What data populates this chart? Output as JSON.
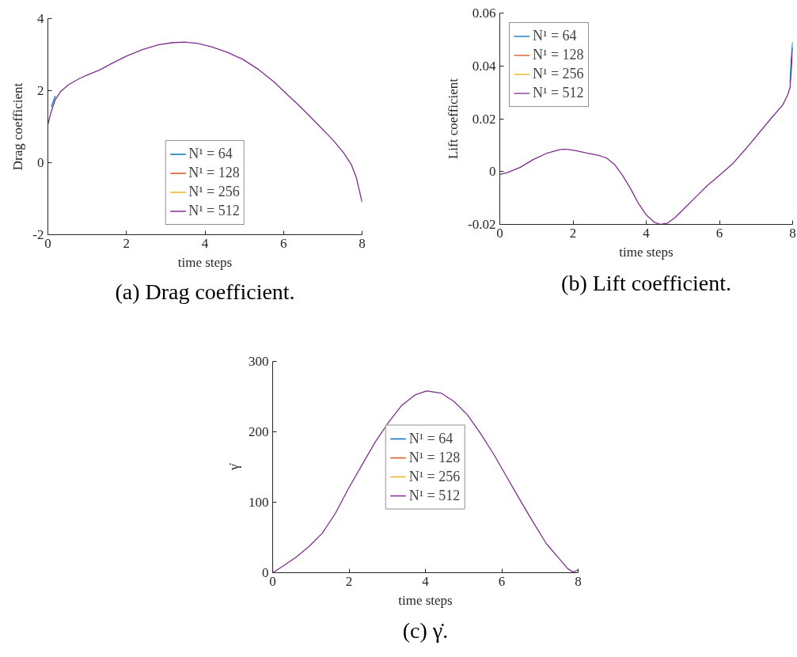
{
  "chart_data": [
    {
      "type": "line",
      "xlabel": "time steps",
      "ylabel": "Drag coefficient",
      "annotations": [
        "(a) Drag coefficient."
      ],
      "legend": "bottom",
      "xlim": [
        0,
        8
      ],
      "ylim": [
        -2,
        4
      ],
      "xticks": [
        0,
        2,
        4,
        6,
        8
      ],
      "yticks": [
        -2,
        0,
        2,
        4
      ],
      "x": [
        0,
        0.087,
        0.19,
        0.32,
        0.52,
        0.79,
        1.0,
        1.33,
        1.6,
        2.0,
        2.41,
        2.81,
        3.15,
        3.48,
        3.82,
        4.15,
        4.56,
        4.96,
        5.36,
        5.77,
        6.0,
        6.44,
        6.84,
        7.25,
        7.52,
        7.72,
        7.85,
        7.93,
        8.0
      ],
      "series": [
        {
          "name": "N¹ = 64",
          "color": "#0072bd",
          "values": [
            null,
            1.55,
            1.85,
            null,
            null,
            null,
            null,
            null,
            null,
            null,
            null,
            null,
            null,
            null,
            null,
            null,
            null,
            null,
            null,
            null,
            null,
            null,
            null,
            null,
            null,
            null,
            null,
            null,
            null
          ]
        },
        {
          "name": "N¹ = 128",
          "color": "#d95319",
          "values": [
            null,
            null,
            null,
            null,
            null,
            null,
            null,
            null,
            null,
            null,
            null,
            null,
            null,
            null,
            null,
            null,
            null,
            null,
            null,
            null,
            null,
            null,
            null,
            null,
            null,
            null,
            null,
            null,
            null
          ]
        },
        {
          "name": "N¹ = 256",
          "color": "#edb120",
          "values": [
            null,
            null,
            null,
            null,
            null,
            null,
            null,
            null,
            null,
            null,
            null,
            null,
            null,
            null,
            null,
            null,
            null,
            null,
            null,
            null,
            null,
            null,
            null,
            null,
            null,
            null,
            null,
            null,
            null
          ]
        },
        {
          "name": "N¹ = 512",
          "color": "#7e2f8e",
          "values": [
            1.06,
            1.43,
            1.75,
            1.97,
            2.16,
            2.33,
            2.43,
            2.58,
            2.74,
            2.96,
            3.14,
            3.27,
            3.33,
            3.35,
            3.31,
            3.22,
            3.07,
            2.87,
            2.59,
            2.23,
            1.99,
            1.54,
            1.1,
            0.64,
            0.29,
            -0.04,
            -0.4,
            -0.77,
            -1.1
          ]
        }
      ]
    },
    {
      "type": "line",
      "xlabel": "time steps",
      "ylabel": "Lift coefficient",
      "annotations": [
        "(b) Lift coefficient."
      ],
      "legend": "top left",
      "xlim": [
        0,
        8
      ],
      "ylim": [
        -0.02,
        0.06
      ],
      "xticks": [
        0,
        2,
        4,
        6,
        8
      ],
      "yticks": [
        -0.02,
        0,
        0.02,
        0.04,
        0.06
      ],
      "x": [
        0,
        0.2,
        0.56,
        0.92,
        1.28,
        1.63,
        1.78,
        2.06,
        2.35,
        2.71,
        2.92,
        3.14,
        3.35,
        3.57,
        3.78,
        4.0,
        4.22,
        4.39,
        4.57,
        4.79,
        5.08,
        5.37,
        5.66,
        6.0,
        6.37,
        6.72,
        7.08,
        7.44,
        7.73,
        7.87,
        7.93,
        7.96,
        8.0
      ],
      "series": [
        {
          "name": "N¹ = 64",
          "color": "#0072bd",
          "values": [
            null,
            null,
            null,
            null,
            null,
            null,
            null,
            null,
            null,
            null,
            null,
            null,
            null,
            null,
            null,
            null,
            null,
            null,
            null,
            null,
            null,
            null,
            null,
            null,
            null,
            null,
            null,
            null,
            null,
            null,
            0.0335,
            0.042,
            0.049
          ]
        },
        {
          "name": "N¹ = 128",
          "color": "#d95319",
          "values": [
            null,
            null,
            null,
            null,
            null,
            null,
            null,
            null,
            null,
            null,
            null,
            null,
            null,
            null,
            null,
            null,
            null,
            null,
            null,
            null,
            null,
            null,
            null,
            null,
            null,
            null,
            null,
            null,
            null,
            null,
            null,
            null,
            null
          ]
        },
        {
          "name": "N¹ = 256",
          "color": "#edb120",
          "values": [
            null,
            null,
            null,
            null,
            null,
            null,
            null,
            null,
            null,
            null,
            null,
            null,
            null,
            null,
            null,
            null,
            null,
            null,
            null,
            null,
            null,
            null,
            null,
            null,
            null,
            null,
            null,
            null,
            null,
            null,
            null,
            null,
            null
          ]
        },
        {
          "name": "N¹ = 512",
          "color": "#7e2f8e",
          "values": [
            -0.0011,
            -0.0004,
            0.0016,
            0.0046,
            0.0069,
            0.0083,
            0.0085,
            0.008,
            0.0071,
            0.0061,
            0.0051,
            0.0026,
            -0.0014,
            -0.0064,
            -0.0119,
            -0.0164,
            -0.0192,
            -0.02,
            -0.0196,
            -0.0174,
            -0.0134,
            -0.0094,
            -0.0054,
            -0.0014,
            0.0031,
            0.0086,
            0.0146,
            0.0206,
            0.0252,
            0.0292,
            0.032,
            0.038,
            0.047
          ]
        }
      ]
    },
    {
      "type": "line",
      "xlabel": "time steps",
      "ylabel": "γ̇",
      "annotations": [
        "(c) γ̇."
      ],
      "legend": "center",
      "xlim": [
        0,
        8
      ],
      "ylim": [
        0,
        300
      ],
      "xticks": [
        0,
        2,
        4,
        6,
        8
      ],
      "yticks": [
        0,
        100,
        200,
        300
      ],
      "x": [
        0,
        0.26,
        0.61,
        0.95,
        1.3,
        1.64,
        1.99,
        2.34,
        2.68,
        3.03,
        3.37,
        3.72,
        4.03,
        4.41,
        4.75,
        5.1,
        5.44,
        5.79,
        6.13,
        6.48,
        6.83,
        7.17,
        7.52,
        7.72,
        7.86,
        7.93,
        8.0
      ],
      "series": [
        {
          "name": "N¹ = 64",
          "color": "#0072bd",
          "values": [
            null,
            null,
            null,
            null,
            null,
            null,
            null,
            null,
            null,
            null,
            null,
            null,
            null,
            null,
            null,
            null,
            null,
            null,
            null,
            null,
            null,
            null,
            null,
            null,
            null,
            null,
            null
          ]
        },
        {
          "name": "N¹ = 128",
          "color": "#d95319",
          "values": [
            null,
            null,
            null,
            null,
            null,
            null,
            null,
            null,
            null,
            null,
            null,
            null,
            null,
            null,
            null,
            null,
            null,
            null,
            null,
            null,
            null,
            null,
            null,
            null,
            null,
            null,
            null
          ]
        },
        {
          "name": "N¹ = 256",
          "color": "#edb120",
          "values": [
            null,
            null,
            null,
            null,
            null,
            null,
            null,
            null,
            null,
            null,
            null,
            null,
            null,
            null,
            null,
            null,
            null,
            null,
            null,
            null,
            null,
            null,
            null,
            null,
            null,
            null,
            null
          ]
        },
        {
          "name": "N¹ = 512",
          "color": "#7e2f8e",
          "values": [
            0,
            9,
            22,
            37,
            56,
            84,
            120,
            153,
            185,
            213,
            237,
            252,
            258,
            255,
            243,
            224,
            198,
            168,
            136,
            103,
            71,
            41,
            19,
            6,
            1,
            2,
            4
          ]
        }
      ]
    }
  ]
}
